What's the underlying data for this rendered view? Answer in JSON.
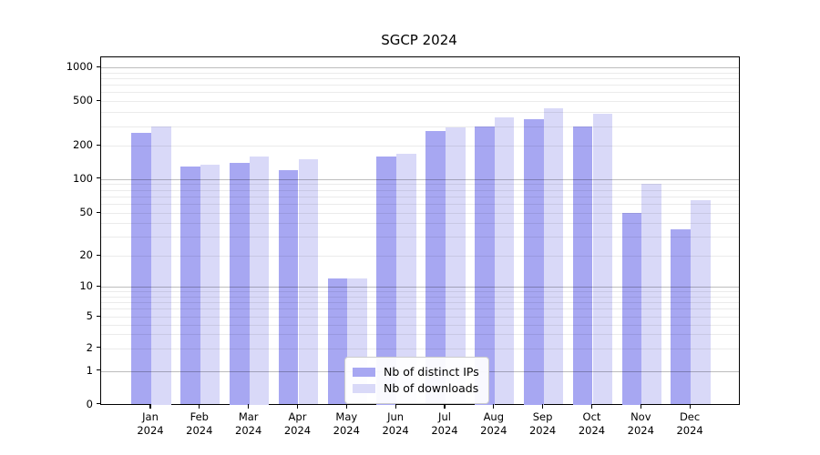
{
  "chart_data": {
    "type": "bar",
    "title": "SGCP 2024",
    "categories": [
      "Jan",
      "Feb",
      "Mar",
      "Apr",
      "May",
      "Jun",
      "Jul",
      "Aug",
      "Sep",
      "Oct",
      "Nov",
      "Dec"
    ],
    "category_year": "2024",
    "series": [
      {
        "name": "Nb of distinct IPs",
        "color": "#a7a7f2",
        "values": [
          260,
          130,
          140,
          120,
          12,
          160,
          270,
          300,
          345,
          300,
          50,
          35
        ]
      },
      {
        "name": "Nb of downloads",
        "color": "#d9d9f8",
        "values": [
          300,
          135,
          160,
          150,
          12,
          170,
          290,
          360,
          430,
          385,
          90,
          65
        ]
      }
    ],
    "yscale": "symlog",
    "y_ticks": [
      0,
      1,
      2,
      5,
      10,
      20,
      50,
      100,
      200,
      500,
      1000
    ],
    "ylim": [
      0,
      1200
    ],
    "grid": true,
    "legend_position": "lower center"
  },
  "colors": {
    "background": "#ffffff",
    "grid_major": "rgba(0,0,0,0.26)",
    "grid_minor": "rgba(0,0,0,0.08)",
    "axis": "#000000",
    "text": "#000000",
    "legend_border": "#cccccc"
  }
}
